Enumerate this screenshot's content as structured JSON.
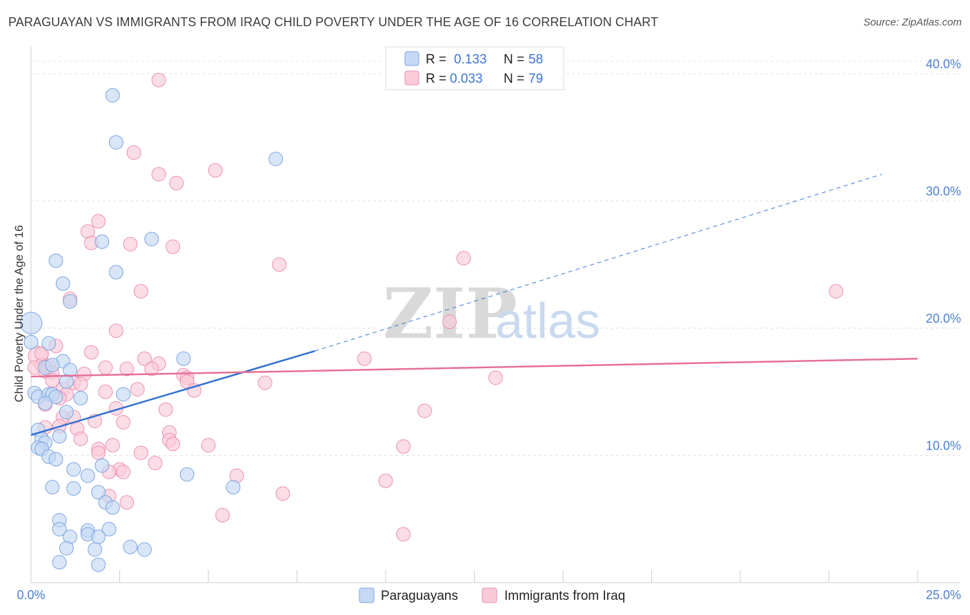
{
  "title": "PARAGUAYAN VS IMMIGRANTS FROM IRAQ CHILD POVERTY UNDER THE AGE OF 16 CORRELATION CHART",
  "source": "Source: ZipAtlas.com",
  "watermark": {
    "zip": "ZIP",
    "atlas": "atlas"
  },
  "colors": {
    "blue_fill": "#c5d9f5",
    "blue_stroke": "#7aa3e0",
    "blue_line": "#3070d0",
    "pink_fill": "#f9cbd8",
    "pink_stroke": "#ec8fac",
    "pink_line": "#e66f96",
    "tick_text": "#4a7fd4",
    "grid": "#e2e2e2"
  },
  "legend": {
    "r_label": "R =",
    "n_label": "N =",
    "blue": {
      "r": "0.133",
      "n": "58"
    },
    "pink": {
      "r": "0.033",
      "n": "79"
    }
  },
  "bottom_legend": {
    "blue": "Paraguayans",
    "pink": "Immigrants from Iraq"
  },
  "chart_data": {
    "type": "scatter",
    "title": "PARAGUAYAN VS IMMIGRANTS FROM IRAQ CHILD POVERTY UNDER THE AGE OF 16 CORRELATION CHART",
    "xlabel": "",
    "ylabel": "Child Poverty Under the Age of 16",
    "xlim": [
      0,
      25
    ],
    "ylim": [
      0,
      42
    ],
    "x_tick_labels": {
      "min": "0.0%",
      "max": "25.0%"
    },
    "y_ticks": [
      {
        "value": 10,
        "label": "10.0%"
      },
      {
        "value": 20,
        "label": "20.0%"
      },
      {
        "value": 30,
        "label": "30.0%"
      },
      {
        "value": 40,
        "label": "40.0%"
      }
    ],
    "grid": true,
    "series": [
      {
        "name": "Paraguayans",
        "color": "blue",
        "trend": {
          "x0": 0,
          "y0": 11.6,
          "x1": 8.0,
          "y1": 18.2,
          "x_dash_end": 24.0,
          "y_dash_end": 32.1
        },
        "points": [
          [
            2.3,
            38.3,
            12
          ],
          [
            2.4,
            34.6,
            12
          ],
          [
            6.9,
            33.3,
            12
          ],
          [
            2.0,
            26.8,
            12
          ],
          [
            3.4,
            27.0,
            12
          ],
          [
            0.7,
            25.3,
            12
          ],
          [
            2.4,
            24.4,
            12
          ],
          [
            0.9,
            23.5,
            12
          ],
          [
            1.1,
            22.1,
            12
          ],
          [
            0.0,
            20.4,
            20
          ],
          [
            0.0,
            18.9,
            12
          ],
          [
            0.5,
            18.8,
            12
          ],
          [
            0.9,
            17.4,
            12
          ],
          [
            4.3,
            17.6,
            12
          ],
          [
            0.4,
            16.9,
            12
          ],
          [
            0.6,
            17.1,
            12
          ],
          [
            1.1,
            16.7,
            12
          ],
          [
            1.0,
            15.8,
            12
          ],
          [
            0.1,
            14.9,
            12
          ],
          [
            0.2,
            14.6,
            12
          ],
          [
            0.5,
            14.8,
            12
          ],
          [
            0.6,
            14.8,
            12
          ],
          [
            0.7,
            14.6,
            12
          ],
          [
            1.4,
            14.5,
            12
          ],
          [
            2.6,
            14.8,
            12
          ],
          [
            0.4,
            14.1,
            12
          ],
          [
            1.0,
            13.4,
            12
          ],
          [
            0.2,
            12.0,
            12
          ],
          [
            0.3,
            11.3,
            12
          ],
          [
            0.4,
            11.0,
            12
          ],
          [
            0.8,
            11.5,
            12
          ],
          [
            0.2,
            10.6,
            12
          ],
          [
            0.3,
            10.5,
            12
          ],
          [
            0.5,
            9.9,
            12
          ],
          [
            0.7,
            9.7,
            12
          ],
          [
            2.0,
            9.2,
            12
          ],
          [
            1.2,
            8.9,
            12
          ],
          [
            4.4,
            8.5,
            12
          ],
          [
            1.6,
            8.4,
            12
          ],
          [
            0.6,
            7.5,
            12
          ],
          [
            1.2,
            7.4,
            12
          ],
          [
            1.9,
            7.1,
            12
          ],
          [
            5.7,
            7.5,
            12
          ],
          [
            2.1,
            6.3,
            12
          ],
          [
            2.3,
            5.9,
            12
          ],
          [
            0.8,
            4.9,
            12
          ],
          [
            0.8,
            4.2,
            12
          ],
          [
            1.6,
            4.1,
            12
          ],
          [
            2.2,
            4.2,
            12
          ],
          [
            1.1,
            3.6,
            12
          ],
          [
            1.6,
            3.8,
            12
          ],
          [
            1.9,
            3.6,
            12
          ],
          [
            1.0,
            2.7,
            12
          ],
          [
            1.8,
            2.6,
            12
          ],
          [
            2.8,
            2.8,
            12
          ],
          [
            3.2,
            2.6,
            12
          ],
          [
            0.8,
            1.6,
            12
          ],
          [
            1.9,
            1.4,
            12
          ]
        ]
      },
      {
        "name": "Immigrants from Iraq",
        "color": "pink",
        "trend": {
          "x0": 0,
          "y0": 16.2,
          "x1": 25.0,
          "y1": 17.6
        },
        "points": [
          [
            3.6,
            39.5,
            12
          ],
          [
            2.9,
            33.8,
            12
          ],
          [
            5.2,
            32.4,
            12
          ],
          [
            3.6,
            32.1,
            12
          ],
          [
            4.1,
            31.4,
            12
          ],
          [
            1.9,
            28.4,
            12
          ],
          [
            1.6,
            27.6,
            12
          ],
          [
            1.7,
            26.7,
            12
          ],
          [
            2.8,
            26.6,
            12
          ],
          [
            4.0,
            26.4,
            12
          ],
          [
            12.2,
            25.5,
            12
          ],
          [
            7.0,
            25.0,
            12
          ],
          [
            22.7,
            22.9,
            12
          ],
          [
            3.1,
            22.9,
            12
          ],
          [
            1.1,
            22.3,
            12
          ],
          [
            11.8,
            20.5,
            12
          ],
          [
            2.4,
            19.8,
            12
          ],
          [
            0.7,
            18.6,
            12
          ],
          [
            1.7,
            18.1,
            12
          ],
          [
            0.2,
            17.8,
            18
          ],
          [
            3.2,
            17.6,
            12
          ],
          [
            9.4,
            17.6,
            12
          ],
          [
            3.6,
            17.2,
            12
          ],
          [
            0.3,
            17.1,
            12
          ],
          [
            0.5,
            17.0,
            12
          ],
          [
            2.1,
            16.9,
            12
          ],
          [
            2.7,
            16.8,
            12
          ],
          [
            3.4,
            16.8,
            12
          ],
          [
            0.4,
            16.6,
            12
          ],
          [
            0.6,
            16.5,
            12
          ],
          [
            1.5,
            16.4,
            12
          ],
          [
            4.3,
            16.3,
            12
          ],
          [
            4.4,
            16.1,
            12
          ],
          [
            13.1,
            16.1,
            12
          ],
          [
            0.6,
            15.9,
            12
          ],
          [
            1.2,
            15.7,
            12
          ],
          [
            1.4,
            15.6,
            12
          ],
          [
            4.4,
            15.8,
            12
          ],
          [
            6.6,
            15.7,
            12
          ],
          [
            0.9,
            15.2,
            12
          ],
          [
            2.1,
            15.0,
            12
          ],
          [
            3.0,
            15.2,
            12
          ],
          [
            4.6,
            15.1,
            12
          ],
          [
            1.0,
            14.8,
            12
          ],
          [
            0.8,
            14.5,
            12
          ],
          [
            0.4,
            14.0,
            12
          ],
          [
            2.4,
            13.7,
            12
          ],
          [
            3.8,
            13.6,
            12
          ],
          [
            11.1,
            13.5,
            12
          ],
          [
            0.9,
            13.0,
            12
          ],
          [
            1.2,
            13.0,
            12
          ],
          [
            1.8,
            12.7,
            12
          ],
          [
            2.6,
            12.6,
            12
          ],
          [
            0.4,
            12.2,
            12
          ],
          [
            0.8,
            12.3,
            12
          ],
          [
            1.3,
            12.1,
            12
          ],
          [
            3.9,
            11.8,
            12
          ],
          [
            1.4,
            11.3,
            12
          ],
          [
            3.9,
            11.2,
            12
          ],
          [
            4.0,
            10.9,
            12
          ],
          [
            5.0,
            10.8,
            12
          ],
          [
            2.3,
            10.8,
            12
          ],
          [
            10.5,
            10.7,
            12
          ],
          [
            1.9,
            10.5,
            12
          ],
          [
            1.9,
            10.2,
            12
          ],
          [
            3.1,
            10.2,
            12
          ],
          [
            3.5,
            9.4,
            12
          ],
          [
            2.5,
            8.9,
            12
          ],
          [
            2.6,
            8.7,
            12
          ],
          [
            2.2,
            8.7,
            12
          ],
          [
            5.8,
            8.4,
            12
          ],
          [
            10.0,
            8.0,
            12
          ],
          [
            7.1,
            7.0,
            12
          ],
          [
            2.2,
            6.8,
            12
          ],
          [
            2.7,
            6.3,
            12
          ],
          [
            5.4,
            5.3,
            12
          ],
          [
            10.5,
            3.8,
            12
          ],
          [
            0.1,
            16.9,
            12
          ],
          [
            0.3,
            18.0,
            12
          ]
        ]
      }
    ]
  }
}
